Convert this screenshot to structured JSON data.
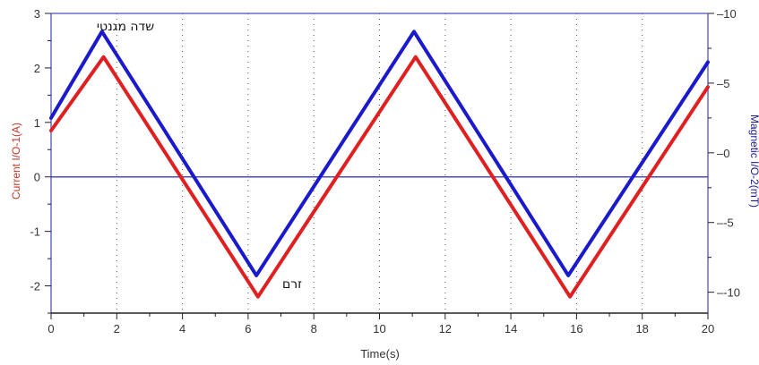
{
  "chart_data": {
    "type": "line",
    "xlabel": "Time(s)",
    "ylabel_left": "Current I/O-1(A)",
    "ylabel_right": "Magnetic I/O-2(mT)",
    "xlim": [
      0,
      20
    ],
    "ylim_left": [
      -2.5,
      3
    ],
    "ylim_right": [
      -11.5,
      10
    ],
    "x_ticks": [
      0,
      2,
      4,
      6,
      8,
      10,
      12,
      14,
      16,
      18,
      20
    ],
    "y_ticks_left": [
      -2,
      -1,
      0,
      1,
      2,
      3
    ],
    "y_ticks_right": [
      -10,
      -5,
      0,
      5,
      10
    ],
    "x_tick_labels": [
      "0",
      "2",
      "4",
      "6",
      "8",
      "10",
      "12",
      "14",
      "16",
      "18",
      "20"
    ],
    "y_tick_labels_left": [
      "-2",
      "-1",
      "0",
      "1",
      "2",
      "3"
    ],
    "y_tick_labels_right": [
      "-10",
      "-5",
      "0",
      "5",
      "10"
    ],
    "grid": "vertical",
    "series": [
      {
        "name": "זרם",
        "axis": "left",
        "color": "#e02020",
        "x": [
          0,
          1.6,
          6.3,
          11.1,
          15.8,
          20
        ],
        "y": [
          0.85,
          2.2,
          -2.2,
          2.2,
          -2.2,
          1.65
        ]
      },
      {
        "name": "שדה מגנטי",
        "axis": "right",
        "color": "#1a1acc",
        "x": [
          0,
          1.55,
          6.25,
          11.05,
          15.75,
          20
        ],
        "y": [
          2.5,
          8.7,
          -8.8,
          8.7,
          -8.8,
          6.5
        ]
      }
    ],
    "annotations": [
      {
        "text": "שדה מגנטי",
        "series": 1
      },
      {
        "text": "זרם",
        "series": 0
      }
    ]
  }
}
